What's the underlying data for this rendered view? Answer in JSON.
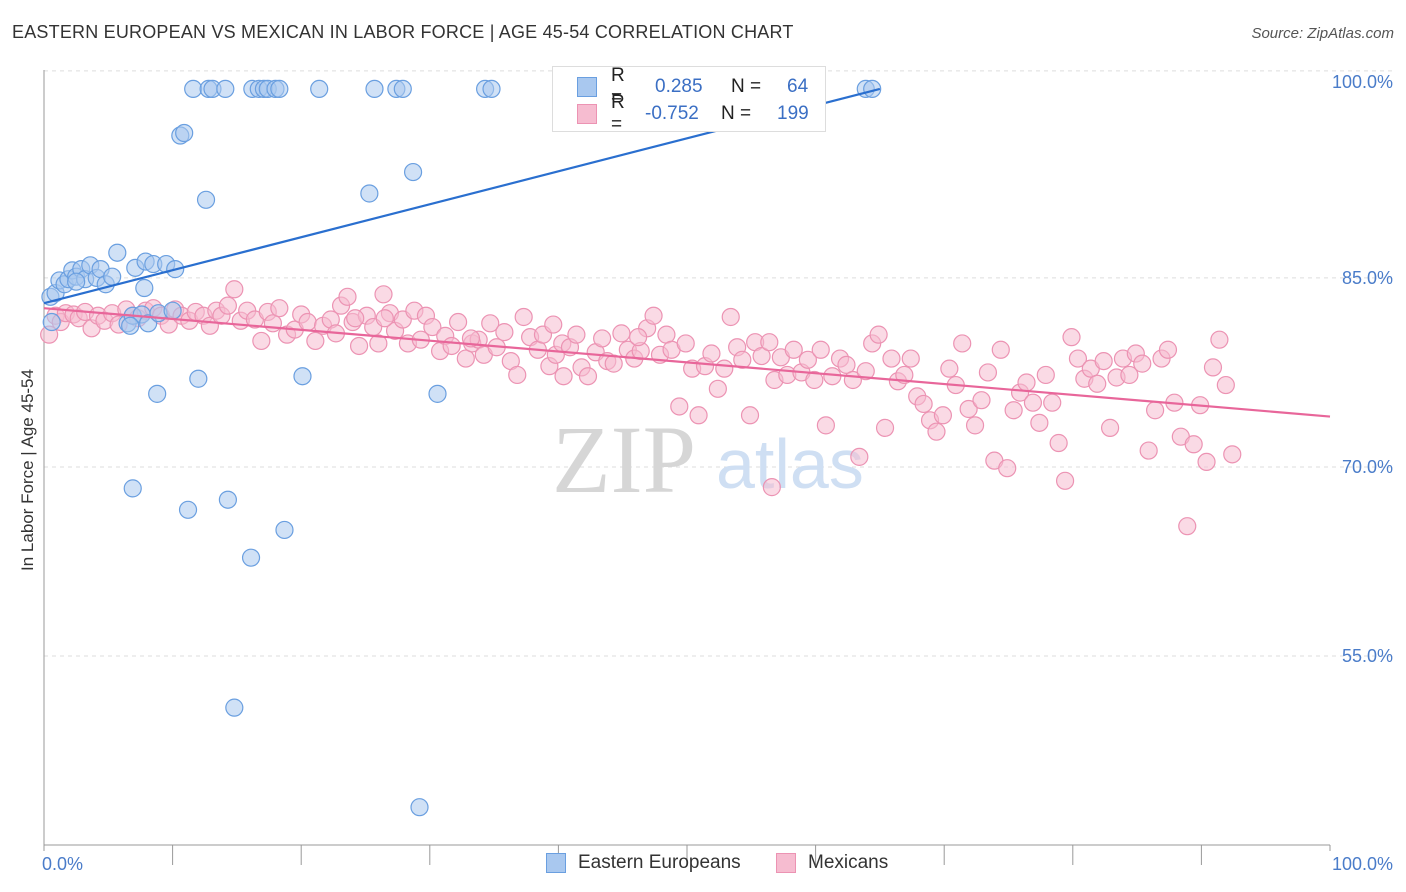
{
  "title": "EASTERN EUROPEAN VS MEXICAN IN LABOR FORCE | AGE 45-54 CORRELATION CHART",
  "source": "Source: ZipAtlas.com",
  "watermark": {
    "zip": "ZIP",
    "atlas": "atlas"
  },
  "colors": {
    "blue_fill": "#a9c8ef",
    "blue_stroke": "#6a9fe0",
    "blue_line": "#2a6fcf",
    "pink_fill": "#f6bcd0",
    "pink_stroke": "#ec93b3",
    "pink_line": "#e8669a",
    "axis_text": "#4a7cc9",
    "grid": "#dddddd"
  },
  "legend": {
    "rows": [
      {
        "r_label": "R =",
        "r_value": "0.285",
        "n_label": "N =",
        "n_value": "64",
        "color": "blue"
      },
      {
        "r_label": "R =",
        "r_value": "-0.752",
        "n_label": "N =",
        "n_value": "199",
        "color": "pink"
      }
    ]
  },
  "bottom_legend": [
    "Eastern Europeans",
    "Mexicans"
  ],
  "chart_data": {
    "type": "scatter",
    "title": "EASTERN EUROPEAN VS MEXICAN IN LABOR FORCE | AGE 45-54 CORRELATION CHART",
    "xlabel": "",
    "ylabel": "In Labor Force | Age 45-54",
    "xlim": [
      0,
      100
    ],
    "ylim": [
      40,
      101.5
    ],
    "x_tick_labels": [
      "0.0%",
      "100.0%"
    ],
    "y_ticks": [
      100,
      85,
      70,
      55
    ],
    "y_tick_labels": [
      "100.0%",
      "85.0%",
      "70.0%",
      "55.0%"
    ],
    "grid": true,
    "series": [
      {
        "name": "Eastern Europeans",
        "color": "blue",
        "trend": {
          "x": [
            0,
            65
          ],
          "y": [
            83.0,
            100.0
          ]
        },
        "points": [
          [
            0.5,
            83.5
          ],
          [
            0.6,
            81.5
          ],
          [
            0.9,
            83.8
          ],
          [
            1.2,
            84.8
          ],
          [
            1.6,
            84.5
          ],
          [
            1.9,
            84.9
          ],
          [
            2.2,
            85.6
          ],
          [
            2.5,
            85.1
          ],
          [
            2.9,
            85.7
          ],
          [
            3.2,
            84.9
          ],
          [
            3.6,
            86.0
          ],
          [
            4.1,
            85.0
          ],
          [
            4.4,
            85.7
          ],
          [
            4.8,
            84.5
          ],
          [
            5.3,
            85.1
          ],
          [
            5.7,
            87.0
          ],
          [
            6.5,
            81.4
          ],
          [
            6.9,
            82.0
          ],
          [
            7.1,
            85.8
          ],
          [
            7.6,
            82.1
          ],
          [
            7.8,
            84.2
          ],
          [
            7.9,
            86.3
          ],
          [
            8.1,
            81.4
          ],
          [
            8.5,
            86.1
          ],
          [
            8.9,
            82.2
          ],
          [
            9.5,
            86.1
          ],
          [
            10.0,
            82.4
          ],
          [
            10.2,
            85.7
          ],
          [
            10.6,
            96.3
          ],
          [
            10.9,
            96.5
          ],
          [
            11.2,
            66.6
          ],
          [
            11.6,
            100
          ],
          [
            12.0,
            77.0
          ],
          [
            12.6,
            91.2
          ],
          [
            12.8,
            100
          ],
          [
            13.1,
            100
          ],
          [
            14.1,
            100
          ],
          [
            14.3,
            67.4
          ],
          [
            14.8,
            50.9
          ],
          [
            16.1,
            62.8
          ],
          [
            16.2,
            100
          ],
          [
            16.7,
            100
          ],
          [
            17.1,
            100
          ],
          [
            17.4,
            100
          ],
          [
            18.0,
            100
          ],
          [
            18.3,
            100
          ],
          [
            18.7,
            65.0
          ],
          [
            20.1,
            77.2
          ],
          [
            21.4,
            100
          ],
          [
            25.3,
            91.7
          ],
          [
            25.7,
            100
          ],
          [
            27.4,
            100
          ],
          [
            27.9,
            100
          ],
          [
            28.7,
            93.4
          ],
          [
            29.2,
            43.0
          ],
          [
            30.6,
            75.8
          ],
          [
            34.3,
            100
          ],
          [
            34.8,
            100
          ],
          [
            63.9,
            100
          ],
          [
            64.4,
            100
          ],
          [
            6.7,
            81.2
          ],
          [
            8.8,
            75.8
          ],
          [
            6.9,
            68.3
          ],
          [
            2.5,
            84.7
          ]
        ]
      },
      {
        "name": "Mexicans",
        "color": "pink",
        "trend": {
          "x": [
            0,
            100
          ],
          "y": [
            82.6,
            74.0
          ]
        },
        "points": [
          [
            0.4,
            80.5
          ],
          [
            0.9,
            82.0
          ],
          [
            1.3,
            81.5
          ],
          [
            1.7,
            82.2
          ],
          [
            2.3,
            82.1
          ],
          [
            2.7,
            81.8
          ],
          [
            3.2,
            82.3
          ],
          [
            3.7,
            81.0
          ],
          [
            4.2,
            82.0
          ],
          [
            4.7,
            81.6
          ],
          [
            5.3,
            82.2
          ],
          [
            5.8,
            81.3
          ],
          [
            6.4,
            82.5
          ],
          [
            6.9,
            82.0
          ],
          [
            7.3,
            81.8
          ],
          [
            7.9,
            82.4
          ],
          [
            8.5,
            82.6
          ],
          [
            9.1,
            82.0
          ],
          [
            9.7,
            81.3
          ],
          [
            10.2,
            82.5
          ],
          [
            10.7,
            82.0
          ],
          [
            11.3,
            81.6
          ],
          [
            11.8,
            82.3
          ],
          [
            12.4,
            82.0
          ],
          [
            12.9,
            81.2
          ],
          [
            13.4,
            82.4
          ],
          [
            13.8,
            82.0
          ],
          [
            14.3,
            82.8
          ],
          [
            14.8,
            84.1
          ],
          [
            15.3,
            81.6
          ],
          [
            15.8,
            82.4
          ],
          [
            16.4,
            81.7
          ],
          [
            16.9,
            80.0
          ],
          [
            17.4,
            82.3
          ],
          [
            17.8,
            81.4
          ],
          [
            18.3,
            82.6
          ],
          [
            18.9,
            80.5
          ],
          [
            19.5,
            80.9
          ],
          [
            20.0,
            82.1
          ],
          [
            20.5,
            81.5
          ],
          [
            21.1,
            80.0
          ],
          [
            21.7,
            81.2
          ],
          [
            22.3,
            81.7
          ],
          [
            22.7,
            80.6
          ],
          [
            23.1,
            82.8
          ],
          [
            23.6,
            83.5
          ],
          [
            24.0,
            81.5
          ],
          [
            24.5,
            79.6
          ],
          [
            25.1,
            82.0
          ],
          [
            25.6,
            81.1
          ],
          [
            26.0,
            79.8
          ],
          [
            26.4,
            83.7
          ],
          [
            26.9,
            82.2
          ],
          [
            27.3,
            80.8
          ],
          [
            27.9,
            81.7
          ],
          [
            28.3,
            79.8
          ],
          [
            28.8,
            82.4
          ],
          [
            29.3,
            80.1
          ],
          [
            29.7,
            82.0
          ],
          [
            30.2,
            81.1
          ],
          [
            30.8,
            79.2
          ],
          [
            31.2,
            80.4
          ],
          [
            31.7,
            79.6
          ],
          [
            32.2,
            81.5
          ],
          [
            32.8,
            78.6
          ],
          [
            33.3,
            79.8
          ],
          [
            33.8,
            80.1
          ],
          [
            34.2,
            78.9
          ],
          [
            34.7,
            81.4
          ],
          [
            35.2,
            79.5
          ],
          [
            35.8,
            80.7
          ],
          [
            36.3,
            78.4
          ],
          [
            36.8,
            77.3
          ],
          [
            37.3,
            81.9
          ],
          [
            37.8,
            80.3
          ],
          [
            38.4,
            79.3
          ],
          [
            38.8,
            80.5
          ],
          [
            39.3,
            78.0
          ],
          [
            39.8,
            78.9
          ],
          [
            40.3,
            79.8
          ],
          [
            40.9,
            79.5
          ],
          [
            41.4,
            80.5
          ],
          [
            41.8,
            77.9
          ],
          [
            42.3,
            77.2
          ],
          [
            42.9,
            79.1
          ],
          [
            43.4,
            80.2
          ],
          [
            43.8,
            78.4
          ],
          [
            44.3,
            78.2
          ],
          [
            44.9,
            80.6
          ],
          [
            45.4,
            79.3
          ],
          [
            45.9,
            78.6
          ],
          [
            46.4,
            79.2
          ],
          [
            46.9,
            81.0
          ],
          [
            47.4,
            82.0
          ],
          [
            47.9,
            78.9
          ],
          [
            48.4,
            80.5
          ],
          [
            48.8,
            79.3
          ],
          [
            49.4,
            74.8
          ],
          [
            49.9,
            79.8
          ],
          [
            50.4,
            77.8
          ],
          [
            50.9,
            74.1
          ],
          [
            51.4,
            78.0
          ],
          [
            51.9,
            79.0
          ],
          [
            52.4,
            76.2
          ],
          [
            52.9,
            77.8
          ],
          [
            53.4,
            81.9
          ],
          [
            53.9,
            79.5
          ],
          [
            54.3,
            78.5
          ],
          [
            54.9,
            74.1
          ],
          [
            55.3,
            79.9
          ],
          [
            55.8,
            78.8
          ],
          [
            56.4,
            79.9
          ],
          [
            56.8,
            76.9
          ],
          [
            57.3,
            78.7
          ],
          [
            57.8,
            77.3
          ],
          [
            58.3,
            79.3
          ],
          [
            58.9,
            77.5
          ],
          [
            59.4,
            78.5
          ],
          [
            59.9,
            76.9
          ],
          [
            60.4,
            79.3
          ],
          [
            60.8,
            73.3
          ],
          [
            61.3,
            77.2
          ],
          [
            61.9,
            78.6
          ],
          [
            62.4,
            78.1
          ],
          [
            62.9,
            76.9
          ],
          [
            63.4,
            70.8
          ],
          [
            63.9,
            77.6
          ],
          [
            64.4,
            79.8
          ],
          [
            64.9,
            80.5
          ],
          [
            65.4,
            73.1
          ],
          [
            65.9,
            78.6
          ],
          [
            66.4,
            76.8
          ],
          [
            66.9,
            77.3
          ],
          [
            67.4,
            78.6
          ],
          [
            67.9,
            75.6
          ],
          [
            68.4,
            75.0
          ],
          [
            68.9,
            73.7
          ],
          [
            69.4,
            72.8
          ],
          [
            69.9,
            74.1
          ],
          [
            70.4,
            77.8
          ],
          [
            70.9,
            76.5
          ],
          [
            71.4,
            79.8
          ],
          [
            71.9,
            74.6
          ],
          [
            72.4,
            73.3
          ],
          [
            72.9,
            75.3
          ],
          [
            73.4,
            77.5
          ],
          [
            73.9,
            70.5
          ],
          [
            74.4,
            79.3
          ],
          [
            74.9,
            69.9
          ],
          [
            75.4,
            74.5
          ],
          [
            75.9,
            75.9
          ],
          [
            76.4,
            76.7
          ],
          [
            76.9,
            75.1
          ],
          [
            77.4,
            73.5
          ],
          [
            77.9,
            77.3
          ],
          [
            78.4,
            75.1
          ],
          [
            78.9,
            71.9
          ],
          [
            79.4,
            68.9
          ],
          [
            79.9,
            80.3
          ],
          [
            80.4,
            78.6
          ],
          [
            80.9,
            77.0
          ],
          [
            81.4,
            77.8
          ],
          [
            81.9,
            76.6
          ],
          [
            82.4,
            78.4
          ],
          [
            82.9,
            73.1
          ],
          [
            83.4,
            77.1
          ],
          [
            83.9,
            78.6
          ],
          [
            84.4,
            77.3
          ],
          [
            84.9,
            79.0
          ],
          [
            85.4,
            78.2
          ],
          [
            85.9,
            71.3
          ],
          [
            86.4,
            74.5
          ],
          [
            86.9,
            78.6
          ],
          [
            87.4,
            79.3
          ],
          [
            87.9,
            75.1
          ],
          [
            88.4,
            72.4
          ],
          [
            88.9,
            65.3
          ],
          [
            89.4,
            71.8
          ],
          [
            89.9,
            74.9
          ],
          [
            90.4,
            70.4
          ],
          [
            90.9,
            77.9
          ],
          [
            91.4,
            80.1
          ],
          [
            91.9,
            76.5
          ],
          [
            92.4,
            71.0
          ],
          [
            24.2,
            81.8
          ],
          [
            26.5,
            81.8
          ],
          [
            56.6,
            68.4
          ],
          [
            39.6,
            81.3
          ],
          [
            46.2,
            80.3
          ],
          [
            40.4,
            77.2
          ],
          [
            33.2,
            80.2
          ]
        ]
      }
    ]
  }
}
